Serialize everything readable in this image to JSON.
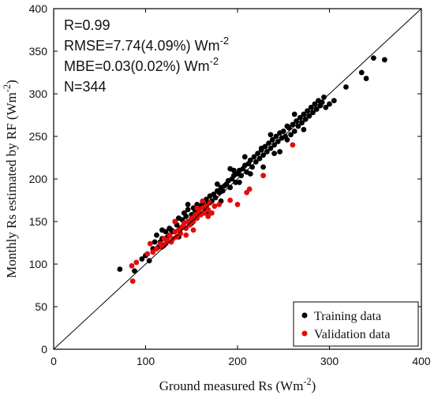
{
  "chart_data": {
    "type": "scatter",
    "title": "",
    "xlabel": "Ground measured Rs (Wm",
    "xlabel_exp": "-2",
    "xlabel_suffix": ")",
    "ylabel": "Monthly Rs estimated by RF (Wm",
    "ylabel_exp": "-2",
    "ylabel_suffix": ")",
    "xlim": [
      0,
      400
    ],
    "ylim": [
      0,
      400
    ],
    "xticks": [
      0,
      100,
      200,
      300,
      400
    ],
    "yticks": [
      0,
      50,
      100,
      150,
      200,
      250,
      300,
      350,
      400
    ],
    "grid": false,
    "legend_placement": "bottom-right",
    "reference_line": "1:1",
    "annotations": [
      {
        "text": "R=0.99",
        "exp": "",
        "suffix": ""
      },
      {
        "text": "RMSE=7.74(4.09%) Wm",
        "exp": "-2",
        "suffix": ""
      },
      {
        "text": "MBE=0.03(0.02%) Wm",
        "exp": "-2",
        "suffix": ""
      },
      {
        "text": "N=344",
        "exp": "",
        "suffix": ""
      }
    ],
    "series": [
      {
        "name": "Training data",
        "color": "#000000",
        "points": [
          [
            72,
            94
          ],
          [
            88,
            92
          ],
          [
            96,
            106
          ],
          [
            100,
            110
          ],
          [
            104,
            104
          ],
          [
            108,
            118
          ],
          [
            110,
            126
          ],
          [
            112,
            134
          ],
          [
            114,
            120
          ],
          [
            116,
            126
          ],
          [
            118,
            130
          ],
          [
            120,
            122
          ],
          [
            122,
            138
          ],
          [
            124,
            132
          ],
          [
            126,
            142
          ],
          [
            128,
            140
          ],
          [
            130,
            138
          ],
          [
            132,
            150
          ],
          [
            134,
            146
          ],
          [
            136,
            154
          ],
          [
            138,
            142
          ],
          [
            140,
            152
          ],
          [
            142,
            160
          ],
          [
            144,
            156
          ],
          [
            146,
            164
          ],
          [
            148,
            150
          ],
          [
            150,
            158
          ],
          [
            152,
            166
          ],
          [
            154,
            162
          ],
          [
            156,
            170
          ],
          [
            158,
            160
          ],
          [
            160,
            168
          ],
          [
            162,
            172
          ],
          [
            164,
            166
          ],
          [
            166,
            176
          ],
          [
            168,
            172
          ],
          [
            170,
            180
          ],
          [
            172,
            174
          ],
          [
            174,
            182
          ],
          [
            176,
            178
          ],
          [
            178,
            186
          ],
          [
            180,
            184
          ],
          [
            182,
            190
          ],
          [
            184,
            186
          ],
          [
            186,
            192
          ],
          [
            188,
            194
          ],
          [
            190,
            198
          ],
          [
            192,
            190
          ],
          [
            194,
            200
          ],
          [
            196,
            204
          ],
          [
            198,
            196
          ],
          [
            200,
            206
          ],
          [
            202,
            210
          ],
          [
            204,
            204
          ],
          [
            206,
            212
          ],
          [
            208,
            216
          ],
          [
            210,
            208
          ],
          [
            212,
            218
          ],
          [
            214,
            222
          ],
          [
            216,
            214
          ],
          [
            218,
            226
          ],
          [
            220,
            220
          ],
          [
            222,
            230
          ],
          [
            224,
            224
          ],
          [
            226,
            234
          ],
          [
            228,
            228
          ],
          [
            230,
            238
          ],
          [
            232,
            232
          ],
          [
            234,
            242
          ],
          [
            236,
            236
          ],
          [
            238,
            246
          ],
          [
            240,
            240
          ],
          [
            242,
            250
          ],
          [
            244,
            244
          ],
          [
            246,
            254
          ],
          [
            248,
            248
          ],
          [
            250,
            256
          ],
          [
            252,
            250
          ],
          [
            254,
            246
          ],
          [
            256,
            260
          ],
          [
            258,
            252
          ],
          [
            260,
            264
          ],
          [
            262,
            256
          ],
          [
            264,
            268
          ],
          [
            266,
            262
          ],
          [
            268,
            272
          ],
          [
            270,
            266
          ],
          [
            272,
            276
          ],
          [
            274,
            270
          ],
          [
            276,
            280
          ],
          [
            278,
            274
          ],
          [
            280,
            284
          ],
          [
            282,
            278
          ],
          [
            284,
            288
          ],
          [
            286,
            282
          ],
          [
            288,
            292
          ],
          [
            290,
            286
          ],
          [
            292,
            290
          ],
          [
            294,
            296
          ],
          [
            296,
            284
          ],
          [
            300,
            288
          ],
          [
            305,
            292
          ],
          [
            318,
            308
          ],
          [
            335,
            325
          ],
          [
            340,
            318
          ],
          [
            348,
            342
          ],
          [
            360,
            340
          ],
          [
            118,
            140
          ],
          [
            146,
            170
          ],
          [
            182,
            174
          ],
          [
            192,
            212
          ],
          [
            208,
            226
          ],
          [
            228,
            214
          ],
          [
            236,
            252
          ],
          [
            246,
            232
          ],
          [
            262,
            276
          ],
          [
            272,
            258
          ],
          [
            226,
            236
          ],
          [
            240,
            230
          ],
          [
            254,
            262
          ],
          [
            214,
            206
          ],
          [
            196,
            210
          ],
          [
            202,
            196
          ],
          [
            178,
            194
          ],
          [
            166,
            160
          ],
          [
            150,
            148
          ],
          [
            136,
            132
          ]
        ]
      },
      {
        "name": "Validation data",
        "color": "#e30b0b",
        "points": [
          [
            85,
            98
          ],
          [
            86,
            80
          ],
          [
            90,
            102
          ],
          [
            102,
            112
          ],
          [
            105,
            124
          ],
          [
            108,
            114
          ],
          [
            112,
            118
          ],
          [
            116,
            124
          ],
          [
            118,
            120
          ],
          [
            120,
            130
          ],
          [
            122,
            124
          ],
          [
            124,
            128
          ],
          [
            126,
            134
          ],
          [
            128,
            126
          ],
          [
            130,
            130
          ],
          [
            132,
            138
          ],
          [
            134,
            132
          ],
          [
            136,
            140
          ],
          [
            138,
            136
          ],
          [
            140,
            144
          ],
          [
            142,
            148
          ],
          [
            144,
            142
          ],
          [
            146,
            150
          ],
          [
            148,
            146
          ],
          [
            150,
            154
          ],
          [
            152,
            150
          ],
          [
            154,
            158
          ],
          [
            156,
            154
          ],
          [
            158,
            162
          ],
          [
            160,
            158
          ],
          [
            162,
            166
          ],
          [
            164,
            160
          ],
          [
            166,
            168
          ],
          [
            168,
            164
          ],
          [
            170,
            172
          ],
          [
            175,
            168
          ],
          [
            180,
            170
          ],
          [
            192,
            175
          ],
          [
            200,
            170
          ],
          [
            210,
            184
          ],
          [
            213,
            188
          ],
          [
            228,
            204
          ],
          [
            260,
            240
          ],
          [
            132,
            150
          ],
          [
            144,
            134
          ],
          [
            152,
            140
          ],
          [
            156,
            166
          ],
          [
            162,
            174
          ],
          [
            168,
            156
          ],
          [
            172,
            160
          ]
        ]
      }
    ]
  }
}
